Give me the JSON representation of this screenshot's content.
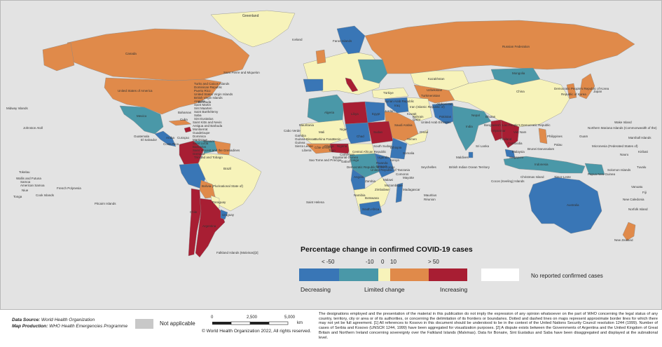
{
  "colors": {
    "ocean": "#e3e3e3",
    "decrease_strong": "#3976b6",
    "decrease": "#4a98a8",
    "limited": "#f7f3ba",
    "increase": "#e08a4a",
    "increase_strong": "#a81e33",
    "no_cases": "#ffffff",
    "not_applicable": "#c8c8c8"
  },
  "legend": {
    "title": "Percentage change in confirmed COVID-19 cases",
    "ticks": [
      "< -50",
      "-10",
      "0",
      "10",
      "> 50"
    ],
    "categories": [
      "Decreasing",
      "Limited change",
      "Increasing"
    ],
    "no_cases": "No reported confirmed cases",
    "not_applicable": "Not applicable"
  },
  "country_labels": [
    "Greenland",
    "Iceland",
    "Faroe Islands",
    "Russian Federation",
    "Canada",
    "Saint Pierre and Miquelon",
    "United States of America",
    "Bermuda",
    "Turks and Caicos Islands",
    "Dominican Republic",
    "Puerto Rico",
    "United States Virgin Islands",
    "British Virgin Islands",
    "Anguilla",
    "Saint Martin",
    "Sint Maarten",
    "Saint Barthélemy",
    "Saba",
    "Sint Eustatius",
    "Saint Kitts and Nevis",
    "Antigua and Barbuda",
    "Montserrat",
    "Guadeloupe",
    "Dominica",
    "Martinique",
    "Saint Lucia",
    "Barbados",
    "Saint Vincent and the Grenadines",
    "Grenada",
    "Trinidad and Tobago",
    "Aruba",
    "Curaçao",
    "Bonaire",
    "Bahamas",
    "Cuba",
    "Mexico",
    "Guatemala",
    "El Salvador",
    "Costa Rica",
    "Midway Islands",
    "Johnston Atoll",
    "Tokelau",
    "Wallis and Futuna",
    "Samoa",
    "American Samoa",
    "Niue",
    "Tonga",
    "Cook Islands",
    "French Polynesia",
    "Pitcairn Islands",
    "Brazil",
    "Bolivia (Plurinational State of)",
    "Paraguay",
    "Chile",
    "Argentina",
    "Uruguay",
    "Falkland Islands (Malvinas)[2]",
    "Cabo Verde",
    "Mauritania",
    "Gambia",
    "Guinea-Bissau",
    "Guinea",
    "Sierra Leone",
    "Liberia",
    "Côte d'Ivoire",
    "Ghana",
    "Togo",
    "Benin",
    "Nigeria",
    "Sao Tome and Principe",
    "Equatorial Guinea",
    "Gabon",
    "Congo",
    "Democratic Republic of the Congo",
    "Central African Republic",
    "Cameroon",
    "Chad",
    "Niger",
    "Mali",
    "Burkina Faso",
    "Algeria",
    "Libya",
    "Egypt",
    "Sudan",
    "South Sudan",
    "Ethiopia",
    "Somalia",
    "Kenya",
    "Uganda",
    "Rwanda",
    "Burundi",
    "United Republic of Tanzania",
    "Zambia",
    "Zimbabwe",
    "Mozambique",
    "Malawi",
    "Angola",
    "Namibia",
    "Botswana",
    "South Africa",
    "Madagascar",
    "Comoros",
    "Mayotte",
    "Mauritius",
    "Réunion",
    "Seychelles",
    "Saint Helena",
    "Türkiye",
    "Saudi Arabia",
    "Oman",
    "Iran (Islamic Republic of)",
    "Iraq",
    "Syrian Arab Republic",
    "Jordan",
    "Kuwait",
    "Qatar",
    "Bahrain",
    "United Arab Emirates",
    "Yemen",
    "Kazakhstan",
    "Uzbekistan",
    "Turkmenistan",
    "Afghanistan",
    "Pakistan",
    "India",
    "Sri Lanka",
    "Maldives",
    "Nepal",
    "Bhutan",
    "Bangladesh",
    "Myanmar",
    "Thailand",
    "Lao People's Democratic Republic",
    "Viet Nam",
    "Cambodia",
    "Malaysia",
    "Singapore",
    "Indonesia",
    "Philippines",
    "Mongolia",
    "China",
    "Democratic People's Republic of Korea",
    "Republic of Korea",
    "Japan",
    "Guam",
    "Northern Mariana Islands (Commonwealth of the)",
    "Wake Island",
    "Palau",
    "Micronesia (Federated States of)",
    "Marshall Islands",
    "Kiribati",
    "Nauru",
    "Tuvalu",
    "Solomon Islands",
    "Papua New Guinea",
    "Vanuatu",
    "Fiji",
    "New Caledonia",
    "Australia",
    "Norfolk Island",
    "New Zealand",
    "Christmas Island",
    "Cocos (Keeling) Islands",
    "British Indian Ocean Territory",
    "Timor-Leste",
    "Brunei Darussalam"
  ],
  "footer": {
    "source_label": "Data Source:",
    "source_value": "World Health Organization",
    "production_label": "Map Production:",
    "production_value": "WHO Health Emergencies Programme",
    "scale_ticks": [
      "0",
      "2,500",
      "5,000"
    ],
    "scale_unit": "km",
    "copyright": "© World Health Organization 2022, All rights reserved.",
    "disclaimer": "The designations employed and the presentation of the material in this publication do not imply the expression of any opinion whatsoever on the part of WHO concerning the legal status of any country, territory, city or area or of its authorities, or concerning the delimitation of its frontiers or boundaries. Dotted and dashed lines on maps represent approximate border lines for which there may not yet be full agreement. [1] All references to Kosovo in this document should be understood to be in the context of the United Nations Security Council resolution 1244 (1999). Number of cases of Serbia and Kosovo (UNSCR 1244, 1999) have been aggregated for visualization purposes. [2] A dispute exists between the Governments of Argentina and the United Kingdom of Great Britain and Northern Ireland concerning sovereignty over the Falkland Islands (Malvinas). Data for Bonaire, Sint Eustatius and Saba have been disaggregated and displayed at the subnational level."
  }
}
